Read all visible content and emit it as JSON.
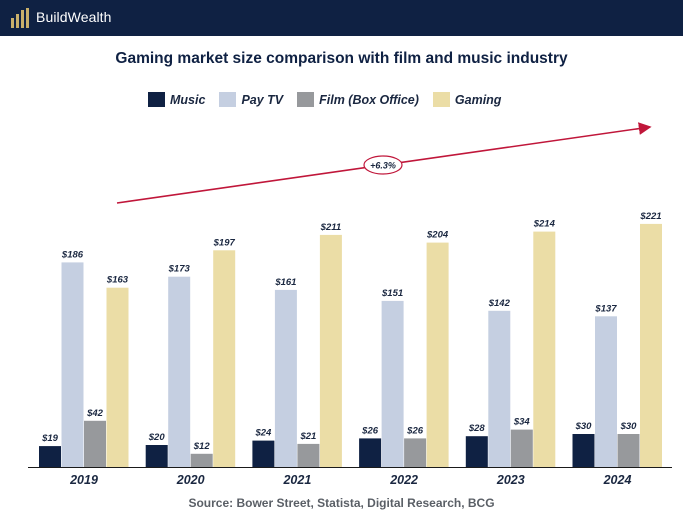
{
  "brand": {
    "name": "BuildWealth",
    "icon": "bar-logo-icon"
  },
  "chart_data": {
    "type": "bar",
    "title": "Gaming market size comparison with film and music industry",
    "categories": [
      "2019",
      "2020",
      "2021",
      "2022",
      "2023",
      "2024"
    ],
    "series": [
      {
        "name": "Music",
        "color": "#0f2143",
        "values": [
          19,
          20,
          24,
          26,
          28,
          30
        ],
        "labels": [
          "$19",
          "$20",
          "$24",
          "$26",
          "$28",
          "$30"
        ]
      },
      {
        "name": "Pay TV",
        "color": "#c5cfe1",
        "values": [
          186,
          173,
          161,
          151,
          142,
          137
        ],
        "labels": [
          "$186",
          "$173",
          "$161",
          "$151",
          "$142",
          "$137"
        ]
      },
      {
        "name": "Film (Box Office)",
        "color": "#97999c",
        "values": [
          42,
          12,
          21,
          26,
          34,
          30
        ],
        "labels": [
          "$42",
          "$12",
          "$21",
          "$26",
          "$34",
          "$30"
        ]
      },
      {
        "name": "Gaming",
        "color": "#ebdda6",
        "values": [
          163,
          197,
          211,
          204,
          214,
          221
        ],
        "labels": [
          "$163",
          "$197",
          "$211",
          "$204",
          "$214",
          "$221"
        ]
      }
    ],
    "ylim": [
      0,
      240
    ],
    "grid": false,
    "legend_position": "top",
    "annotation": {
      "text": "+6.3%",
      "color": "#c0163a"
    },
    "source": "Source: Bower Street, Statista, Digital Research, BCG"
  }
}
